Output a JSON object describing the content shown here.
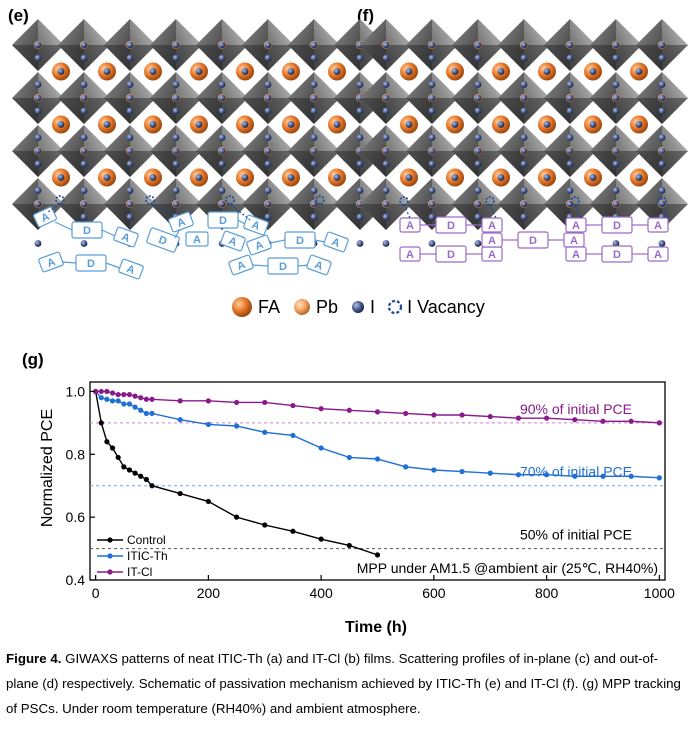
{
  "panels": {
    "e": "(e)",
    "f": "(f)",
    "g": "(g)"
  },
  "atom_legend": [
    {
      "label": "FA",
      "icon": "fa-sphere-icon",
      "color": "#e8782a"
    },
    {
      "label": "Pb",
      "icon": "pb-sphere-icon",
      "color": "#f0a060"
    },
    {
      "label": "I",
      "icon": "i-sphere-icon",
      "color": "#4a5a8a"
    },
    {
      "label": "I Vacancy",
      "icon": "i-vacancy-icon",
      "color": "#1a4a9a"
    }
  ],
  "molecule_labels": {
    "acceptor": "A",
    "donor": "D"
  },
  "colors": {
    "ith_blue": "#5a9ed8",
    "icl_purple": "#9a6ac8",
    "control": "#000000",
    "ith_line": "#1f6fd6",
    "icl_line": "#8a1a8a"
  },
  "chart_data": {
    "type": "line",
    "xlabel": "Time (h)",
    "ylabel": "Normalized PCE",
    "xlim": [
      -10,
      1010
    ],
    "ylim": [
      0.4,
      1.03
    ],
    "xticks": [
      0,
      200,
      400,
      600,
      800,
      1000
    ],
    "yticks": [
      0.4,
      0.6,
      0.8,
      1.0
    ],
    "ytick_labels": [
      "0.4",
      "0.6",
      "0.8",
      "1.0"
    ],
    "series": [
      {
        "name": "Control",
        "color": "#000000",
        "x": [
          0,
          10,
          20,
          30,
          40,
          50,
          60,
          70,
          80,
          90,
          100,
          150,
          200,
          250,
          300,
          350,
          400,
          450,
          500
        ],
        "y": [
          1.0,
          0.9,
          0.84,
          0.82,
          0.79,
          0.76,
          0.75,
          0.74,
          0.73,
          0.72,
          0.7,
          0.675,
          0.65,
          0.6,
          0.575,
          0.555,
          0.53,
          0.51,
          0.48
        ]
      },
      {
        "name": "ITIC-Th",
        "color": "#1f6fd6",
        "x": [
          0,
          10,
          20,
          30,
          40,
          50,
          60,
          70,
          80,
          90,
          100,
          150,
          200,
          250,
          300,
          350,
          400,
          450,
          500,
          550,
          600,
          650,
          700,
          750,
          800,
          850,
          900,
          950,
          1000
        ],
        "y": [
          1.0,
          0.98,
          0.975,
          0.97,
          0.97,
          0.96,
          0.96,
          0.95,
          0.94,
          0.93,
          0.93,
          0.91,
          0.895,
          0.89,
          0.87,
          0.86,
          0.82,
          0.79,
          0.785,
          0.76,
          0.75,
          0.745,
          0.74,
          0.735,
          0.735,
          0.73,
          0.73,
          0.73,
          0.725
        ]
      },
      {
        "name": "IT-Cl",
        "color": "#8a1a8a",
        "x": [
          0,
          10,
          20,
          30,
          40,
          50,
          60,
          70,
          80,
          90,
          100,
          150,
          200,
          250,
          300,
          350,
          400,
          450,
          500,
          550,
          600,
          650,
          700,
          750,
          800,
          850,
          900,
          950,
          1000
        ],
        "y": [
          1.0,
          1.0,
          1.0,
          0.995,
          0.99,
          0.99,
          0.99,
          0.985,
          0.98,
          0.975,
          0.975,
          0.97,
          0.97,
          0.965,
          0.965,
          0.955,
          0.945,
          0.94,
          0.935,
          0.93,
          0.925,
          0.925,
          0.92,
          0.915,
          0.915,
          0.91,
          0.905,
          0.905,
          0.9
        ]
      }
    ],
    "reference_lines": [
      {
        "y": 0.9,
        "color": "#d87ad8",
        "label": "90% of initial PCE",
        "label_color": "#8a1a8a"
      },
      {
        "y": 0.7,
        "color": "#6aa8e8",
        "label": "70% of initial PCE",
        "label_color": "#1f6fd6"
      },
      {
        "y": 0.5,
        "color": "#555555",
        "label": "50% of initial PCE",
        "label_color": "#000000"
      }
    ],
    "annotation": "MPP under AM1.5 @ambient air (25℃, RH40%)",
    "legend_position": "bottom-left"
  },
  "caption": {
    "label": "Figure 4.",
    "text": " GIWAXS patterns of neat ITIC-Th (a) and IT-Cl (b) films. Scattering profiles of in-plane (c) and out-of-plane (d) respectively. Schematic of passivation mechanism achieved by ITIC-Th (e) and IT-Cl (f). (g) MPP tracking of PSCs. Under room temperature (RH40%) and ambient atmosphere."
  }
}
